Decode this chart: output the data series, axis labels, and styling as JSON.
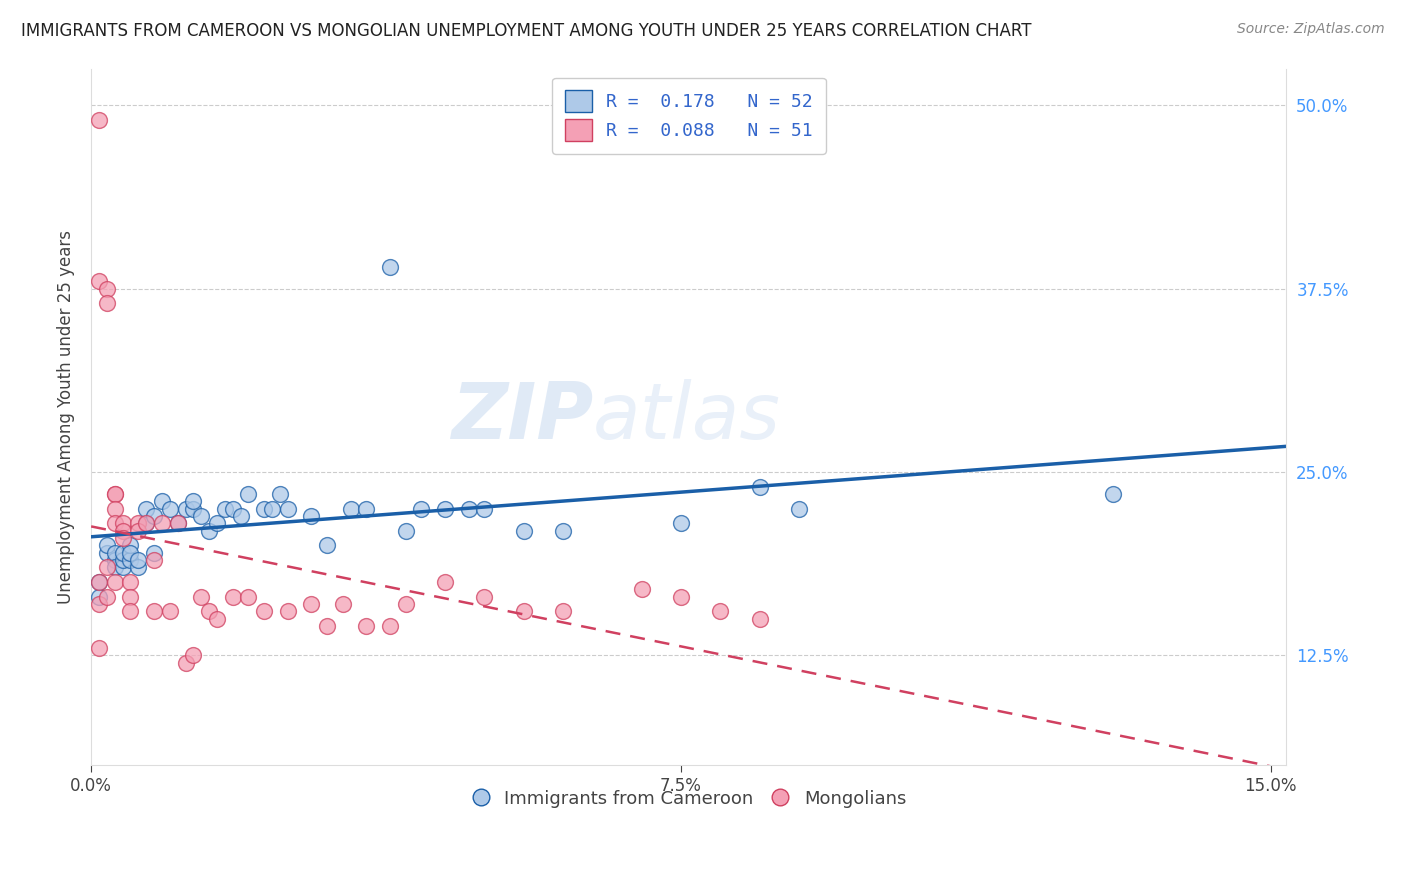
{
  "title": "IMMIGRANTS FROM CAMEROON VS MONGOLIAN UNEMPLOYMENT AMONG YOUTH UNDER 25 YEARS CORRELATION CHART",
  "source": "Source: ZipAtlas.com",
  "ylabel": "Unemployment Among Youth under 25 years",
  "legend_label1": "Immigrants from Cameroon",
  "legend_label2": "Mongolians",
  "legend_R1": "R =  0.178",
  "legend_N1": "N = 52",
  "legend_R2": "R =  0.088",
  "legend_N2": "N = 51",
  "color_blue": "#aec9e8",
  "color_pink": "#f4a0b5",
  "line_blue": "#1a5fa8",
  "line_pink": "#d04060",
  "watermark": "ZIPatlas",
  "blue_x": [
    0.001,
    0.001,
    0.002,
    0.002,
    0.003,
    0.003,
    0.003,
    0.004,
    0.004,
    0.004,
    0.005,
    0.005,
    0.005,
    0.006,
    0.006,
    0.007,
    0.007,
    0.008,
    0.008,
    0.009,
    0.01,
    0.011,
    0.012,
    0.013,
    0.013,
    0.014,
    0.015,
    0.016,
    0.017,
    0.018,
    0.019,
    0.02,
    0.022,
    0.023,
    0.024,
    0.025,
    0.028,
    0.03,
    0.033,
    0.035,
    0.038,
    0.04,
    0.042,
    0.045,
    0.048,
    0.05,
    0.055,
    0.06,
    0.075,
    0.085,
    0.09,
    0.13
  ],
  "blue_y": [
    0.175,
    0.165,
    0.195,
    0.2,
    0.19,
    0.195,
    0.185,
    0.185,
    0.19,
    0.195,
    0.19,
    0.2,
    0.195,
    0.185,
    0.19,
    0.215,
    0.225,
    0.195,
    0.22,
    0.23,
    0.225,
    0.215,
    0.225,
    0.225,
    0.23,
    0.22,
    0.21,
    0.215,
    0.225,
    0.225,
    0.22,
    0.235,
    0.225,
    0.225,
    0.235,
    0.225,
    0.22,
    0.2,
    0.225,
    0.225,
    0.39,
    0.21,
    0.225,
    0.225,
    0.225,
    0.225,
    0.21,
    0.21,
    0.215,
    0.24,
    0.225,
    0.235
  ],
  "pink_x": [
    0.001,
    0.001,
    0.001,
    0.001,
    0.001,
    0.002,
    0.002,
    0.002,
    0.002,
    0.003,
    0.003,
    0.003,
    0.003,
    0.003,
    0.004,
    0.004,
    0.004,
    0.005,
    0.005,
    0.005,
    0.006,
    0.006,
    0.007,
    0.008,
    0.008,
    0.009,
    0.01,
    0.011,
    0.012,
    0.013,
    0.014,
    0.015,
    0.016,
    0.018,
    0.02,
    0.022,
    0.025,
    0.028,
    0.03,
    0.032,
    0.035,
    0.038,
    0.04,
    0.045,
    0.05,
    0.055,
    0.06,
    0.07,
    0.075,
    0.08,
    0.085
  ],
  "pink_y": [
    0.49,
    0.38,
    0.175,
    0.16,
    0.13,
    0.375,
    0.365,
    0.185,
    0.165,
    0.235,
    0.235,
    0.225,
    0.215,
    0.175,
    0.215,
    0.21,
    0.205,
    0.175,
    0.165,
    0.155,
    0.215,
    0.21,
    0.215,
    0.19,
    0.155,
    0.215,
    0.155,
    0.215,
    0.12,
    0.125,
    0.165,
    0.155,
    0.15,
    0.165,
    0.165,
    0.155,
    0.155,
    0.16,
    0.145,
    0.16,
    0.145,
    0.145,
    0.16,
    0.175,
    0.165,
    0.155,
    0.155,
    0.17,
    0.165,
    0.155,
    0.15
  ],
  "xlim": [
    0.0,
    0.152
  ],
  "ylim": [
    0.05,
    0.525
  ],
  "ytick_vals": [
    0.125,
    0.25,
    0.375,
    0.5
  ],
  "ytick_labels": [
    "12.5%",
    "25.0%",
    "37.5%",
    "50.0%"
  ],
  "xtick_vals": [
    0.0,
    0.075,
    0.15
  ],
  "xtick_labels": [
    "0.0%",
    "7.5%",
    "15.0%"
  ],
  "background_color": "#ffffff",
  "grid_color": "#cccccc"
}
